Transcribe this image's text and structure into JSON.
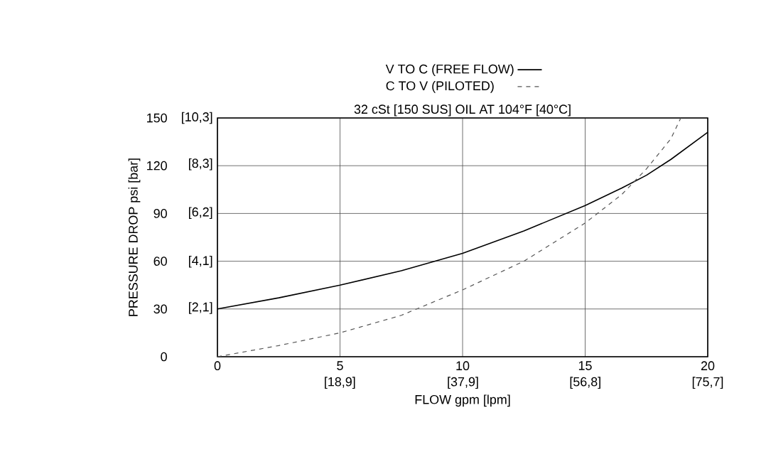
{
  "chart_data": {
    "type": "line",
    "xlabel": "FLOW gpm [lpm]",
    "ylabel": "PRESSURE DROP psi [bar]",
    "annotations": [
      "32 cSt [150 SUS] OIL AT 104°F [40°C]"
    ],
    "x": [
      0,
      2.5,
      5,
      7.5,
      10,
      12.5,
      15,
      16.5,
      17.5,
      18.5,
      18.9,
      20
    ],
    "series": [
      {
        "name": "V TO C (FREE FLOW)",
        "color": "#000000",
        "line_style": "solid",
        "values": [
          30,
          37,
          45,
          54,
          65,
          79,
          95,
          106,
          114,
          124,
          null,
          141
        ]
      },
      {
        "name": "C TO V (PILOTED)",
        "color": "#555555",
        "line_style": "dashed",
        "values": [
          0,
          7,
          15,
          26,
          42,
          60,
          84,
          102,
          118,
          137,
          150,
          null
        ]
      }
    ],
    "xlim": [
      0,
      20
    ],
    "ylim": [
      0,
      150
    ],
    "xticks": [
      0,
      5,
      10,
      15,
      20
    ],
    "yticks": [
      0,
      30,
      60,
      90,
      120,
      150
    ],
    "x2lim": [
      0,
      75.7
    ],
    "x2ticks": [
      {
        "value": 18.9,
        "label": "[18,9]"
      },
      {
        "value": 37.9,
        "label": "[37,9]"
      },
      {
        "value": 56.8,
        "label": "[56,8]"
      },
      {
        "value": 75.7,
        "label": "[75,7]"
      }
    ],
    "y2lim": [
      0,
      10.3
    ],
    "y2ticks": [
      {
        "value": 2.1,
        "label": "[2,1]"
      },
      {
        "value": 4.1,
        "label": "[4,1]"
      },
      {
        "value": 6.2,
        "label": "[6,2]"
      },
      {
        "value": 8.3,
        "label": "[8,3]"
      },
      {
        "value": 10.3,
        "label": "[10,3]"
      }
    ],
    "grid": true,
    "legend": "top",
    "marker": "none"
  }
}
